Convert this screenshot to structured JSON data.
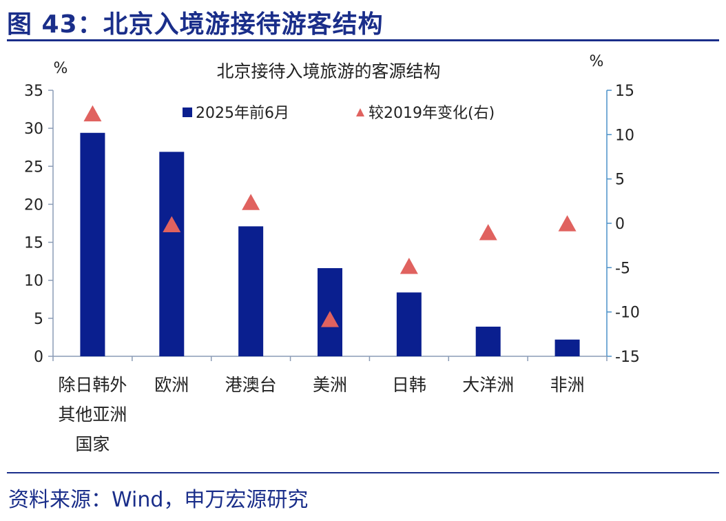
{
  "figure_title": "图 43：北京入境游接待游客结构",
  "source": "资料来源：Wind，申万宏源研究",
  "colors": {
    "bar": "#0a1f8f",
    "marker": "#e0625f",
    "axis_right": "#4a90c8",
    "title": "#1a2e8a"
  },
  "chart_data": {
    "type": "bar",
    "title": "北京接待入境旅游的客源结构",
    "y_left_unit": "%",
    "y_right_unit": "%",
    "ylim_left": [
      0,
      35
    ],
    "ylim_right": [
      -15,
      15
    ],
    "yticks_left": [
      "0",
      "5",
      "10",
      "15",
      "20",
      "25",
      "30",
      "35"
    ],
    "yticks_right": [
      "-15",
      "-10",
      "-5",
      "0",
      "5",
      "10",
      "15"
    ],
    "categories": [
      [
        "除日韩外",
        "其他亚洲",
        "国家"
      ],
      [
        "欧洲"
      ],
      [
        "港澳台"
      ],
      [
        "美洲"
      ],
      [
        "日韩"
      ],
      [
        "大洋洲"
      ],
      [
        "非洲"
      ]
    ],
    "series": [
      {
        "name": "2025年前6月",
        "kind": "bar",
        "axis": "left",
        "values": [
          29.4,
          26.9,
          17.1,
          11.6,
          8.4,
          3.9,
          2.2
        ]
      },
      {
        "name": "较2019年变化(右)",
        "kind": "marker",
        "axis": "right",
        "values": [
          12.3,
          -0.2,
          2.3,
          -10.9,
          -4.9,
          -1.1,
          -0.1
        ]
      }
    ],
    "legend_position": "top",
    "grid": false
  }
}
